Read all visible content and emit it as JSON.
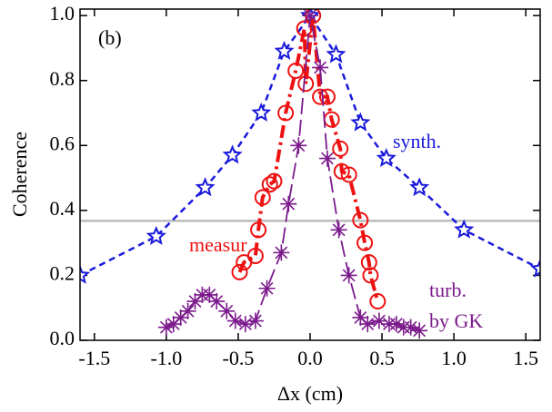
{
  "chart_data": {
    "type": "line",
    "xlabel": "Δx (cm)",
    "ylabel": "Coherence",
    "xlim": [
      -1.6,
      1.6
    ],
    "ylim": [
      0,
      1.02
    ],
    "xticks": [
      -1.5,
      {
        "value": -1.0,
        "label": "-1.0"
      },
      -0.5,
      {
        "value": 0,
        "label": "0.0"
      },
      0.5,
      {
        "value": 1.0,
        "label": "1.0"
      },
      1.5
    ],
    "yticks": [
      {
        "value": 0,
        "label": "0.0"
      },
      0.2,
      0.4,
      0.6,
      0.8,
      {
        "value": 1.0,
        "label": "1.0"
      }
    ],
    "reference_line": {
      "value": 0.368,
      "color": "#bbbbbb"
    },
    "annotations": [
      {
        "text": "(b)",
        "color": "#000000"
      },
      {
        "text": "synth.",
        "color": "#1a1adc"
      },
      {
        "text": "measur",
        "color": "#ee1111"
      },
      {
        "text": "turb.",
        "color": "#7b1a8c"
      },
      {
        "text": "by GK",
        "color": "#7b1a8c"
      }
    ],
    "series": [
      {
        "color": "#1a1adc",
        "marker": "star",
        "dash": "short",
        "x": [
          -1.6,
          -1.07,
          -0.73,
          -0.54,
          -0.34,
          -0.18,
          0.0,
          0.18,
          0.35,
          0.53,
          0.76,
          1.07,
          1.6
        ],
        "values": [
          0.2,
          0.32,
          0.47,
          0.57,
          0.7,
          0.89,
          1.0,
          0.88,
          0.67,
          0.56,
          0.47,
          0.34,
          0.22
        ]
      },
      {
        "color": "#ee1111",
        "marker": "circle",
        "dash": "dashdot",
        "x": [
          -0.49,
          -0.46,
          -0.38,
          -0.36,
          -0.33,
          -0.28,
          -0.25,
          -0.17,
          -0.1,
          -0.04,
          -0.03,
          0.02,
          0.07,
          0.12,
          0.15,
          0.21,
          0.22,
          0.27,
          0.35,
          0.38,
          0.41,
          0.42,
          0.47
        ],
        "values": [
          0.21,
          0.24,
          0.26,
          0.34,
          0.44,
          0.48,
          0.49,
          0.7,
          0.83,
          0.96,
          0.79,
          1.0,
          0.75,
          0.75,
          0.68,
          0.59,
          0.52,
          0.51,
          0.37,
          0.3,
          0.24,
          0.2,
          0.12
        ]
      },
      {
        "color": "#7b1a8c",
        "marker": "asterisk",
        "dash": "long",
        "x": [
          -1.0,
          -0.95,
          -0.9,
          -0.85,
          -0.8,
          -0.75,
          -0.7,
          -0.65,
          -0.58,
          -0.52,
          -0.45,
          -0.38,
          -0.3,
          -0.2,
          -0.15,
          -0.08,
          0.0,
          0.07,
          0.12,
          0.2,
          0.27,
          0.35,
          0.4,
          0.48,
          0.55,
          0.6,
          0.65,
          0.7,
          0.76
        ],
        "values": [
          0.04,
          0.05,
          0.07,
          0.09,
          0.12,
          0.14,
          0.14,
          0.12,
          0.09,
          0.06,
          0.05,
          0.06,
          0.16,
          0.27,
          0.42,
          0.6,
          1.0,
          0.84,
          0.56,
          0.34,
          0.2,
          0.07,
          0.05,
          0.06,
          0.05,
          0.05,
          0.04,
          0.04,
          0.03
        ]
      }
    ]
  }
}
